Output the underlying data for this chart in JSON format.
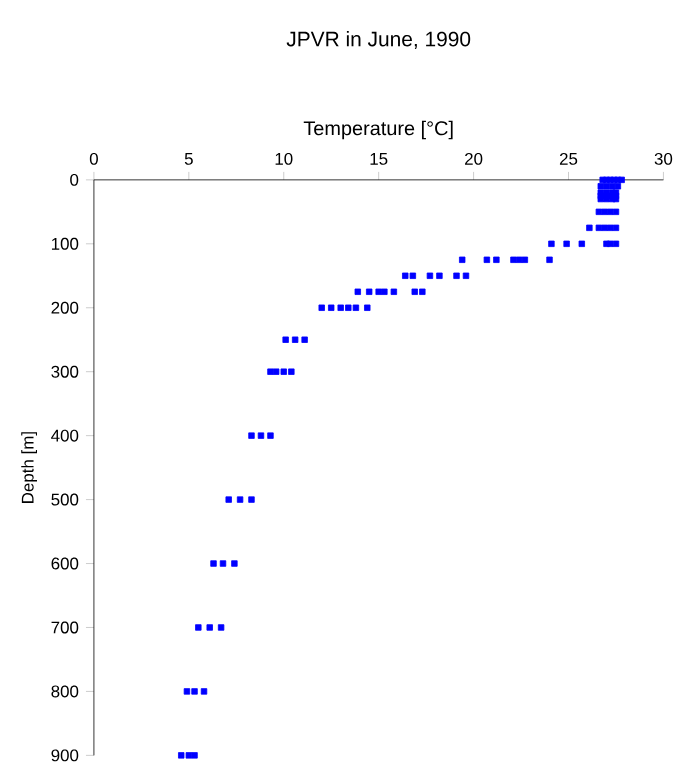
{
  "chart_data": {
    "type": "scatter",
    "title": "JPVR in June, 1990",
    "xlabel": "Temperature [°C]",
    "ylabel": "Depth [m]",
    "xlim": [
      0,
      30
    ],
    "ylim": [
      900,
      0
    ],
    "xticks": [
      0,
      5,
      10,
      15,
      20,
      25,
      30
    ],
    "yticks": [
      0,
      100,
      200,
      300,
      400,
      500,
      600,
      700,
      800,
      900
    ],
    "marker": "square",
    "grid": false,
    "series": [
      {
        "color": "#0000ff",
        "x": [
          26.8,
          27.0,
          27.2,
          27.4,
          27.6,
          27.8,
          26.7,
          27.0,
          27.3,
          27.6,
          26.7,
          27.0,
          27.3,
          27.5,
          26.7,
          27.0,
          27.3,
          27.5,
          26.7,
          27.0,
          27.3,
          27.5,
          26.6,
          26.9,
          27.2,
          27.5,
          26.1,
          26.6,
          26.9,
          27.2,
          27.5,
          24.1,
          24.9,
          25.7,
          27.0,
          27.2,
          27.5,
          19.4,
          20.7,
          21.2,
          22.1,
          22.4,
          22.7,
          24.0,
          16.4,
          16.8,
          17.7,
          18.2,
          19.1,
          19.6,
          13.9,
          14.5,
          15.0,
          15.3,
          15.8,
          16.9,
          17.3,
          12.0,
          12.5,
          13.0,
          13.4,
          13.8,
          14.4,
          10.1,
          10.6,
          11.1,
          9.3,
          9.6,
          10.0,
          10.4,
          8.3,
          8.8,
          9.3,
          7.1,
          7.7,
          8.3,
          6.3,
          6.8,
          7.4,
          5.5,
          6.1,
          6.7,
          4.9,
          5.3,
          5.8,
          4.6,
          5.0,
          5.3
        ],
        "values": [
          0,
          0,
          0,
          0,
          0,
          0,
          10,
          10,
          10,
          10,
          20,
          20,
          20,
          20,
          25,
          25,
          25,
          25,
          30,
          30,
          30,
          30,
          50,
          50,
          50,
          50,
          75,
          75,
          75,
          75,
          75,
          100,
          100,
          100,
          100,
          100,
          100,
          125,
          125,
          125,
          125,
          125,
          125,
          125,
          150,
          150,
          150,
          150,
          150,
          150,
          175,
          175,
          175,
          175,
          175,
          175,
          175,
          200,
          200,
          200,
          200,
          200,
          200,
          250,
          250,
          250,
          300,
          300,
          300,
          300,
          400,
          400,
          400,
          500,
          500,
          500,
          600,
          600,
          600,
          700,
          700,
          700,
          800,
          800,
          800,
          900,
          900,
          900
        ]
      }
    ]
  }
}
